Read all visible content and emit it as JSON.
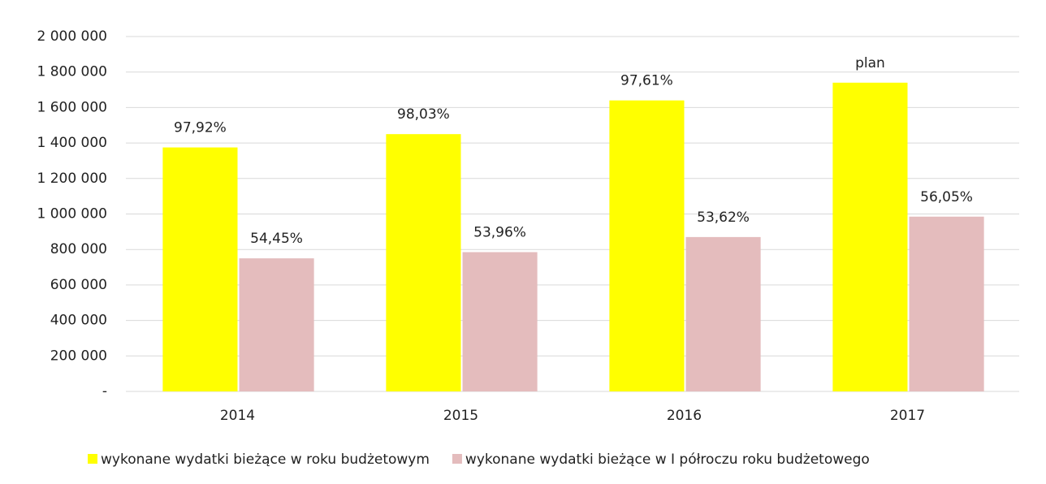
{
  "chart_data": {
    "type": "bar",
    "categories": [
      "2014",
      "2015",
      "2016",
      "2017"
    ],
    "series": [
      {
        "name": "wykonane wydatki bieżące w roku budżetowym",
        "color": "#ffff00",
        "values": [
          1375000,
          1450000,
          1640000,
          1740000
        ],
        "annotations": [
          "97,92%",
          "98,03%",
          "97,61%",
          "plan"
        ]
      },
      {
        "name": "wykonane wydatki bieżące w I półroczu roku budżetowego",
        "color": "#e4bcbd",
        "values": [
          750000,
          785000,
          870000,
          985000
        ],
        "annotations": [
          "54,45%",
          "53,96%",
          "53,62%",
          "56,05%"
        ]
      }
    ],
    "ylim": [
      0,
      2000000
    ],
    "yticks": [
      {
        "value": 0,
        "label": "-"
      },
      {
        "value": 200000,
        "label": "200 000"
      },
      {
        "value": 400000,
        "label": "400 000"
      },
      {
        "value": 600000,
        "label": "600 000"
      },
      {
        "value": 800000,
        "label": "800 000"
      },
      {
        "value": 1000000,
        "label": "1 000 000"
      },
      {
        "value": 1200000,
        "label": "1 200 000"
      },
      {
        "value": 1400000,
        "label": "1 400 000"
      },
      {
        "value": 1600000,
        "label": "1 600 000"
      },
      {
        "value": 1800000,
        "label": "1 800 000"
      },
      {
        "value": 2000000,
        "label": "2 000 000"
      }
    ],
    "grid": true
  }
}
